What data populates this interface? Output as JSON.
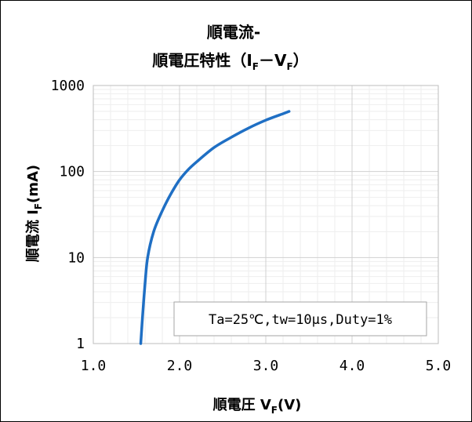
{
  "chart_data": {
    "type": "line",
    "title_line1": "順電流-",
    "title_line2": "順電圧特性（IF－VF）",
    "xlabel": "順電圧 VF(V)",
    "ylabel": "順電流 IF(mA)",
    "xlim": [
      1.0,
      5.0
    ],
    "ylim": [
      1,
      1000
    ],
    "yscale": "log",
    "x_ticks": [
      "1.0",
      "2.0",
      "3.0",
      "4.0",
      "5.0"
    ],
    "y_ticks": [
      "1",
      "10",
      "100",
      "1000"
    ],
    "grid": true,
    "series_color": "#1f6fc4",
    "annotation": "Ta=25℃,tw=10μs,Duty=1%",
    "series": [
      {
        "x": [
          1.55,
          1.57,
          1.6,
          1.63,
          1.7,
          1.8,
          1.9,
          2.0,
          2.1,
          2.2,
          2.4,
          2.6,
          2.8,
          3.0,
          3.2,
          3.27
        ],
        "values": [
          1,
          2,
          5,
          10,
          20,
          35,
          55,
          80,
          105,
          130,
          190,
          250,
          320,
          395,
          470,
          500
        ]
      }
    ]
  }
}
